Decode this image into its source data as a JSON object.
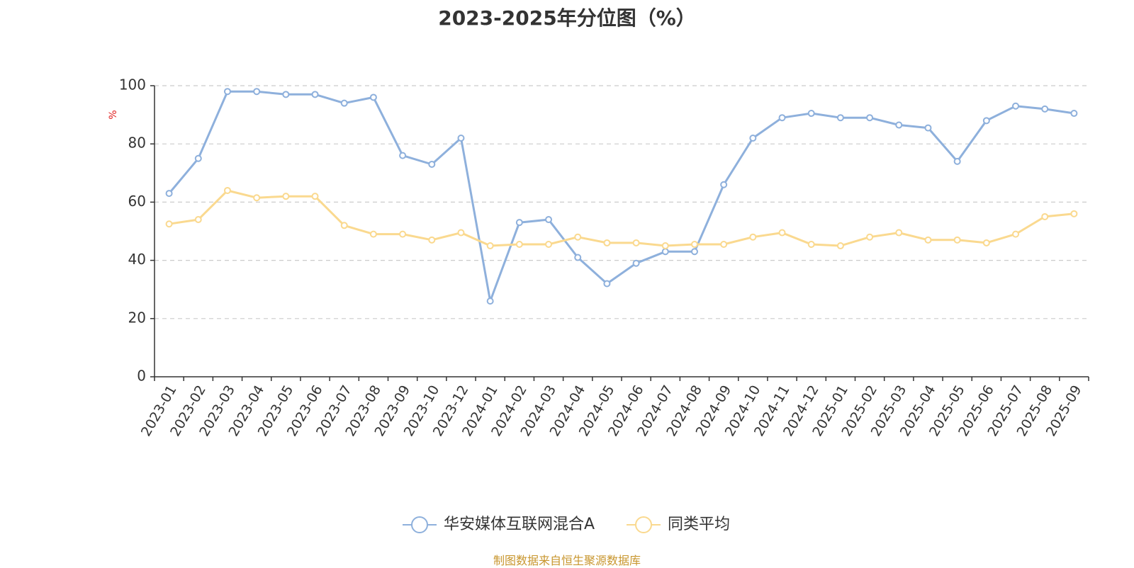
{
  "chart_data": {
    "type": "line",
    "title": "2023-2025年分位图（%）",
    "ylabel": "%",
    "ylim": [
      0,
      100
    ],
    "yticks": [
      "0",
      "20",
      "40",
      "60",
      "80",
      "100"
    ],
    "grid": true,
    "legend_placement": "bottom-center",
    "categories": [
      "2023-01",
      "2023-02",
      "2023-03",
      "2023-04",
      "2023-05",
      "2023-06",
      "2023-07",
      "2023-08",
      "2023-09",
      "2023-10",
      "2023-12",
      "2024-01",
      "2024-02",
      "2024-03",
      "2024-04",
      "2024-05",
      "2024-06",
      "2024-07",
      "2024-08",
      "2024-09",
      "2024-10",
      "2024-11",
      "2024-12",
      "2025-01",
      "2025-02",
      "2025-03",
      "2025-04",
      "2025-05",
      "2025-06",
      "2025-07",
      "2025-08",
      "2025-09"
    ],
    "series": [
      {
        "name": "华安媒体互联网混合A",
        "color": "#8eb0dc",
        "values": [
          63,
          75,
          98,
          98,
          97,
          97,
          94,
          96,
          76,
          73,
          82,
          26,
          53,
          54,
          41,
          32,
          39,
          43,
          43,
          66,
          82,
          89,
          90.5,
          89,
          89,
          86.5,
          85.5,
          74,
          88,
          93,
          92,
          90.5
        ]
      },
      {
        "name": "同类平均",
        "color": "#fad98f",
        "values": [
          52.5,
          54,
          64,
          61.5,
          62,
          62,
          52,
          49,
          49,
          47,
          49.5,
          45,
          45.5,
          45.5,
          48,
          46,
          46,
          45,
          45.5,
          45.5,
          48,
          49.5,
          45.5,
          45,
          48,
          49.5,
          47,
          47,
          46,
          49,
          55,
          56
        ]
      }
    ]
  },
  "footer": {
    "source": "制图数据来自恒生聚源数据库"
  }
}
